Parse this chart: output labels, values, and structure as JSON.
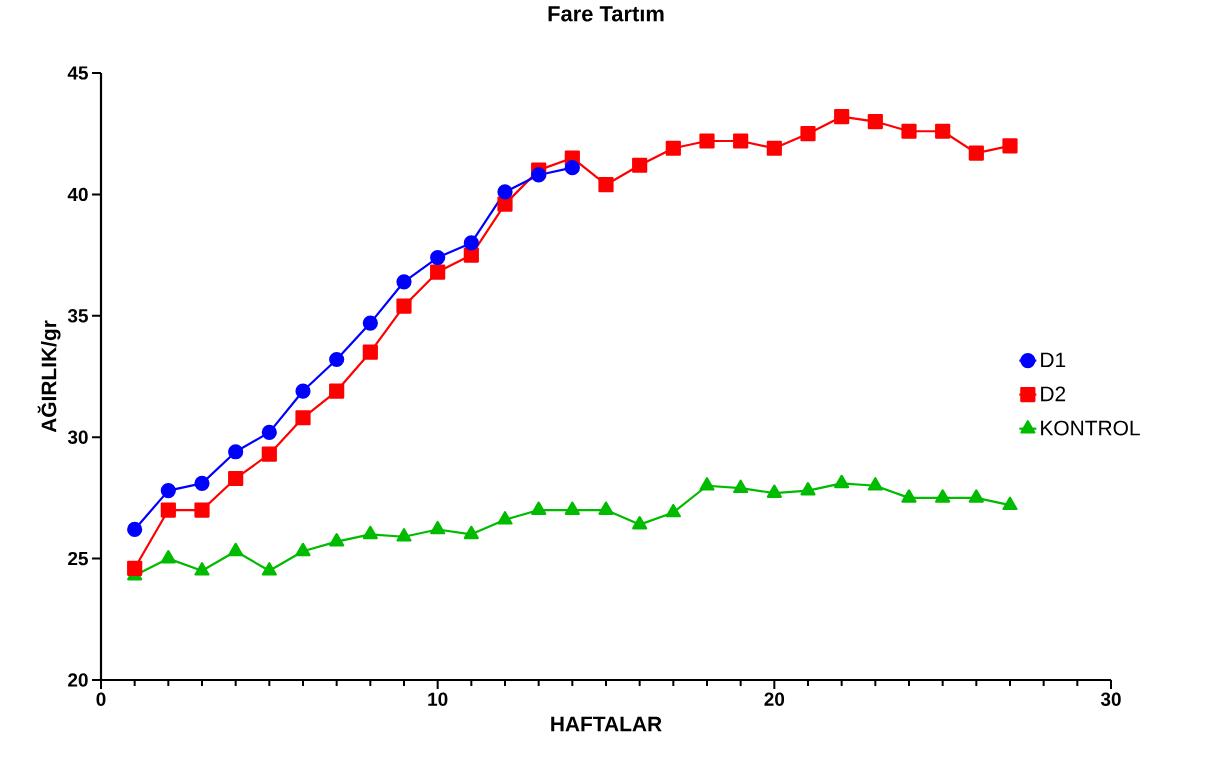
{
  "chart_data": {
    "type": "line",
    "title": "Fare Tartım",
    "xlabel": "HAFTALAR",
    "ylabel": "AĞIRLIK/gr",
    "x": [
      1,
      2,
      3,
      4,
      5,
      6,
      7,
      8,
      9,
      10,
      11,
      12,
      13,
      14,
      15,
      16,
      17,
      18,
      19,
      20,
      21,
      22,
      23,
      24,
      25,
      26,
      27
    ],
    "series": [
      {
        "name": "D1",
        "color": "#0000ff",
        "marker": "circle",
        "x": [
          1,
          2,
          3,
          4,
          5,
          6,
          7,
          8,
          9,
          10,
          11,
          12,
          13,
          14
        ],
        "values": [
          26.2,
          27.8,
          28.1,
          29.4,
          30.2,
          31.9,
          33.2,
          34.7,
          36.4,
          37.4,
          38.0,
          40.1,
          40.8,
          41.1
        ]
      },
      {
        "name": "D2",
        "color": "#ff0000",
        "marker": "square",
        "values": [
          24.6,
          27.0,
          27.0,
          28.3,
          29.3,
          30.8,
          31.9,
          33.5,
          35.4,
          36.8,
          37.5,
          39.6,
          41.0,
          41.5,
          40.4,
          41.2,
          41.9,
          42.2,
          42.2,
          41.9,
          42.5,
          43.2,
          43.0,
          42.6,
          42.6,
          41.7,
          42.0
        ]
      },
      {
        "name": "KONTROL",
        "color": "#00bb00",
        "marker": "triangle",
        "values": [
          24.3,
          25.0,
          24.5,
          25.3,
          24.5,
          25.3,
          25.7,
          26.0,
          25.9,
          26.2,
          26.0,
          26.6,
          27.0,
          27.0,
          27.0,
          26.4,
          26.9,
          28.0,
          27.9,
          27.7,
          27.8,
          28.1,
          28.0,
          27.5,
          27.5,
          27.5,
          27.2
        ]
      }
    ],
    "xlim": [
      0,
      30
    ],
    "xticks": [
      0,
      10,
      20,
      30
    ],
    "ylim": [
      20,
      45
    ],
    "yticks": [
      20,
      25,
      30,
      35,
      40,
      45
    ],
    "grid": false,
    "legend": "right",
    "line_style": "solid"
  }
}
